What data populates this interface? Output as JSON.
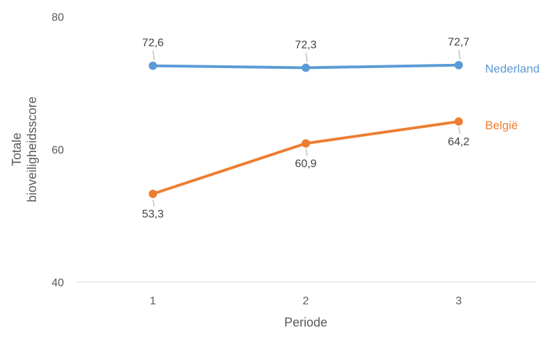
{
  "chart_data": {
    "type": "line",
    "x": [
      "1",
      "2",
      "3"
    ],
    "xlabel": "Periode",
    "ylabel_lines": [
      "Totale",
      "bioveiligheidsscore"
    ],
    "yticks": [
      "40",
      "60",
      "80"
    ],
    "ylim": [
      40,
      80
    ],
    "grid": false,
    "legend": "inline-right",
    "series": [
      {
        "name": "Nederland",
        "color": "#5B9BD5",
        "values": [
          72.6,
          72.3,
          72.7
        ],
        "labels": [
          "72,6",
          "72,3",
          "72,7"
        ],
        "label_position": "above"
      },
      {
        "name": "België",
        "color": "#ED7D31",
        "values": [
          53.3,
          60.9,
          64.2
        ],
        "labels": [
          "53,3",
          "60,9",
          "64,2"
        ],
        "label_position": "below"
      }
    ]
  }
}
